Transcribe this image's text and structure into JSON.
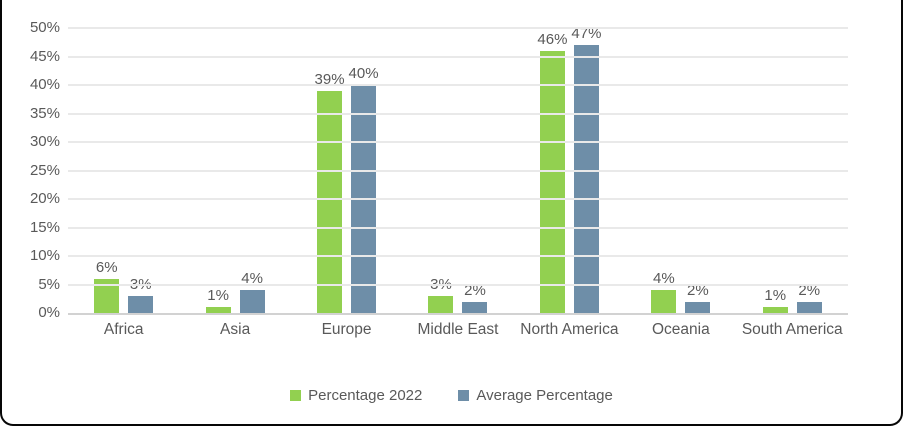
{
  "chart_data": {
    "type": "bar",
    "title": "",
    "categories": [
      "Africa",
      "Asia",
      "Europe",
      "Middle East",
      "North America",
      "Oceania",
      "South America"
    ],
    "series": [
      {
        "name": "Percentage 2022",
        "color": "#92d050",
        "values": [
          6,
          1,
          39,
          3,
          46,
          4,
          1
        ]
      },
      {
        "name": "Average Percentage",
        "color": "#6e8ea8",
        "values": [
          3,
          4,
          40,
          2,
          47,
          2,
          2
        ]
      }
    ],
    "data_labels": [
      [
        "6%",
        "1%",
        "39%",
        "3%",
        "46%",
        "4%",
        "1%"
      ],
      [
        "3%",
        "4%",
        "40%",
        "2%",
        "47%",
        "2%",
        "2%"
      ]
    ],
    "ylabel": "",
    "xlabel": "",
    "ylim": [
      0,
      50
    ],
    "y_tick_step": 5,
    "y_ticks": [
      "0%",
      "5%",
      "10%",
      "15%",
      "20%",
      "25%",
      "30%",
      "35%",
      "40%",
      "45%",
      "50%"
    ],
    "grid": true,
    "legend_position": "bottom"
  },
  "colors": {
    "text": "#595959",
    "gridline": "#e9e9e9",
    "axis_line": "#d2d2d2",
    "frame_border": "#070707",
    "background": "#ffffff"
  }
}
